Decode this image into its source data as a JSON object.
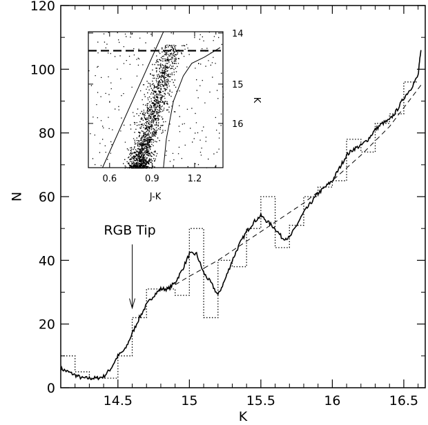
{
  "chart_data": [
    {
      "type": "line",
      "xlabel": "K",
      "ylabel": "N",
      "xlim": [
        14.1,
        16.65
      ],
      "ylim": [
        0,
        120
      ],
      "x_ticks": [
        14.5,
        15,
        15.5,
        16,
        16.5
      ],
      "x_tick_labels": [
        "14.5",
        "15",
        "15.5",
        "16",
        "16.5"
      ],
      "y_ticks": [
        0,
        20,
        40,
        60,
        80,
        100,
        120
      ],
      "y_tick_labels": [
        "0",
        "20",
        "40",
        "60",
        "80",
        "100",
        "120"
      ],
      "grid": false,
      "annotations": [
        {
          "text": "RGB Tip",
          "arrow_x": 14.6,
          "arrow_y_from": 45,
          "arrow_y_to": 25
        }
      ],
      "series": [
        {
          "style": "solid",
          "x": [
            14.1,
            14.15,
            14.2,
            14.25,
            14.3,
            14.35,
            14.4,
            14.45,
            14.5,
            14.55,
            14.6,
            14.65,
            14.7,
            14.75,
            14.8,
            14.85,
            14.9,
            14.95,
            15.0,
            15.05,
            15.1,
            15.15,
            15.2,
            15.25,
            15.3,
            15.35,
            15.4,
            15.45,
            15.5,
            15.55,
            15.6,
            15.65,
            15.7,
            15.75,
            15.8,
            15.85,
            15.9,
            15.95,
            16.0,
            16.05,
            16.1,
            16.15,
            16.2,
            16.25,
            16.3,
            16.35,
            16.4,
            16.45,
            16.5,
            16.55,
            16.6,
            16.62
          ],
          "y": [
            6,
            5,
            4,
            3,
            3,
            3,
            3.5,
            6,
            10,
            12,
            17,
            22,
            26,
            29,
            31,
            31,
            33,
            37,
            42,
            42,
            36,
            33,
            29,
            34,
            40,
            45,
            49,
            52,
            54,
            52,
            50,
            47,
            47,
            51,
            55,
            58,
            61,
            63,
            65,
            69,
            73,
            75,
            76,
            78,
            81,
            83,
            84,
            87,
            91,
            94,
            98,
            106
          ]
        },
        {
          "style": "dashed",
          "x": [
            14.85,
            15.0,
            15.2,
            15.4,
            15.6,
            15.8,
            16.0,
            16.2,
            16.4,
            16.62
          ],
          "y": [
            31,
            35,
            40,
            46,
            52,
            58,
            65,
            73,
            82,
            95
          ]
        },
        {
          "style": "histogram-dotted",
          "bin_edges": [
            14.1,
            14.2,
            14.3,
            14.4,
            14.5,
            14.6,
            14.7,
            14.8,
            14.9,
            15.0,
            15.1,
            15.2,
            15.3,
            15.4,
            15.5,
            15.6,
            15.7,
            15.8,
            15.9,
            16.0,
            16.1,
            16.2,
            16.3,
            16.4,
            16.5,
            16.6
          ],
          "counts": [
            10,
            5,
            3,
            3,
            10,
            22,
            31,
            31,
            29,
            50,
            22,
            40,
            38,
            50,
            60,
            44,
            51,
            60,
            63,
            65,
            78,
            74,
            83,
            86,
            96
          ]
        }
      ]
    },
    {
      "type": "scatter",
      "xlabel": "J-K",
      "ylabel": "K",
      "xlim": [
        0.45,
        1.4
      ],
      "ylim": [
        14.3,
        16.45
      ],
      "y_inverted": true,
      "y_axis_side": "right",
      "x_ticks": [
        0.6,
        0.9,
        1.2
      ],
      "x_tick_labels": [
        "0.6",
        "0.9",
        "1.2"
      ],
      "y_ticks": [
        14,
        15,
        16
      ],
      "y_tick_labels": [
        "14",
        "15",
        "16"
      ],
      "tip_level_K": 14.6,
      "boundary_lines": [
        {
          "x": [
            0.55,
            0.98
          ],
          "y": [
            16.45,
            14.0
          ]
        },
        {
          "x": [
            0.98,
            1.0,
            1.05,
            1.12,
            1.18,
            1.27,
            1.38
          ],
          "y": [
            16.45,
            16.0,
            15.4,
            15.0,
            14.8,
            14.7,
            14.55
          ]
        }
      ],
      "point_count": 1500,
      "background_point_count": 250
    }
  ]
}
